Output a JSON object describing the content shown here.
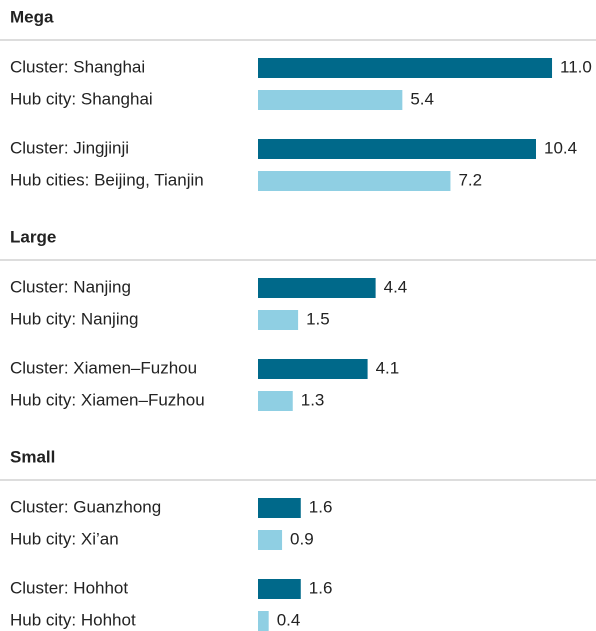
{
  "chart_data": {
    "type": "bar",
    "colors": [
      "#00698a",
      "#8fcfe3"
    ],
    "groups": [
      {
        "name": "Mega",
        "categories": [
          "Cluster: Shanghai",
          "Hub city: Shanghai",
          "Cluster: Jingjinji",
          "Hub cities: Beijing, Tianjin"
        ],
        "values": [
          11.0,
          5.4,
          10.4,
          7.2
        ],
        "value_labels": [
          "11.0",
          "5.4",
          "10.4",
          "7.2"
        ]
      },
      {
        "name": "Large",
        "categories": [
          "Cluster: Nanjing",
          "Hub city: Nanjing",
          "Cluster: Xiamen–Fuzhou",
          "Hub city: Xiamen–Fuzhou"
        ],
        "values": [
          4.4,
          1.5,
          4.1,
          1.3
        ],
        "value_labels": [
          "4.4",
          "1.5",
          "4.1",
          "1.3"
        ]
      },
      {
        "name": "Small",
        "categories": [
          "Cluster: Guanzhong",
          "Hub city: Xi’an",
          "Cluster: Hohhot",
          "Hub city: Hohhot"
        ],
        "values": [
          1.6,
          0.9,
          1.6,
          0.4
        ],
        "value_labels": [
          "1.6",
          "0.9",
          "1.6",
          "0.4"
        ]
      }
    ]
  }
}
